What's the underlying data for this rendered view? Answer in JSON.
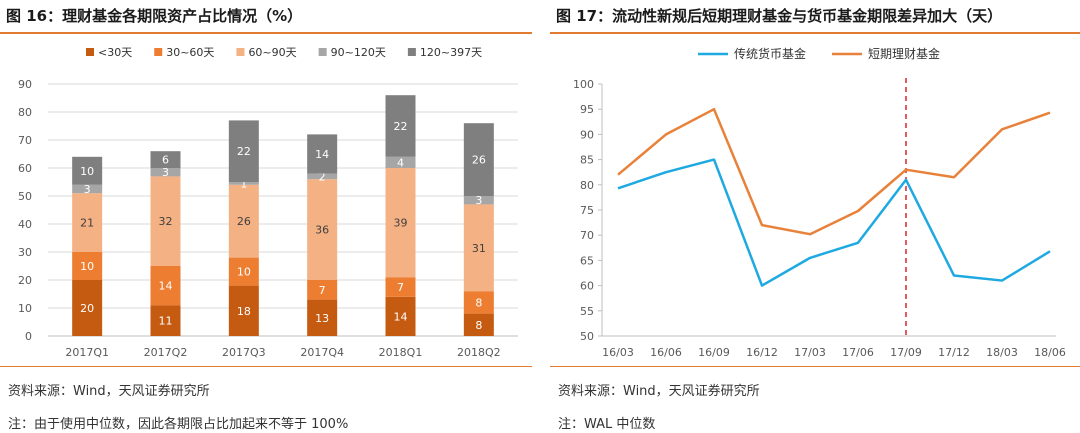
{
  "left": {
    "title": "图 16：理财基金各期限资产占比情况（%）",
    "source": "资料来源：Wind，天风证券研究所",
    "note": "注：由于使用中位数，因此各期限占比加起来不等于 100%"
  },
  "right": {
    "title": "图 17：流动性新规后短期理财基金与货币基金期限差异加大（天）",
    "source": "资料来源：Wind，天风证券研究所",
    "note": "注：WAL 中位数"
  },
  "chart_data": [
    {
      "type": "bar",
      "stacked": true,
      "categories": [
        "2017Q1",
        "2017Q2",
        "2017Q3",
        "2017Q4",
        "2018Q1",
        "2018Q2"
      ],
      "series": [
        {
          "name": "<30天",
          "color": "#c55a11",
          "values": [
            20,
            11,
            18,
            13,
            14,
            8
          ]
        },
        {
          "name": "30~60天",
          "color": "#ed7d31",
          "values": [
            10,
            14,
            10,
            7,
            7,
            8
          ]
        },
        {
          "name": "60~90天",
          "color": "#f4b183",
          "values": [
            21,
            32,
            26,
            36,
            39,
            31
          ]
        },
        {
          "name": "90~120天",
          "color": "#a6a6a6",
          "values": [
            3,
            3,
            1,
            2,
            4,
            3
          ]
        },
        {
          "name": "120~397天",
          "color": "#7f7f7f",
          "values": [
            10,
            6,
            22,
            14,
            22,
            26
          ]
        }
      ],
      "ylim": [
        0,
        90
      ],
      "yticks": [
        0,
        10,
        20,
        30,
        40,
        50,
        60,
        70,
        80,
        90
      ],
      "grid": true,
      "legend": "top"
    },
    {
      "type": "line",
      "categories": [
        "16/03",
        "16/06",
        "16/09",
        "16/12",
        "17/03",
        "17/06",
        "17/09",
        "17/12",
        "18/03",
        "18/06"
      ],
      "series": [
        {
          "name": "传统货币基金",
          "color": "#1fa9e1",
          "values": [
            79.3,
            82.5,
            85,
            60,
            65.5,
            68.5,
            81,
            62,
            61,
            66.8
          ]
        },
        {
          "name": "短期理财基金",
          "color": "#e8823a",
          "values": [
            82,
            90,
            95,
            72,
            70.2,
            74.8,
            83,
            81.5,
            91,
            94.3
          ]
        }
      ],
      "ylim": [
        50,
        100
      ],
      "yticks": [
        50,
        55,
        60,
        65,
        70,
        75,
        80,
        85,
        90,
        95,
        100
      ],
      "grid": false,
      "legend": "top",
      "reference_line": {
        "category": "17/09",
        "color": "#d62728",
        "style": "dashed"
      }
    }
  ]
}
